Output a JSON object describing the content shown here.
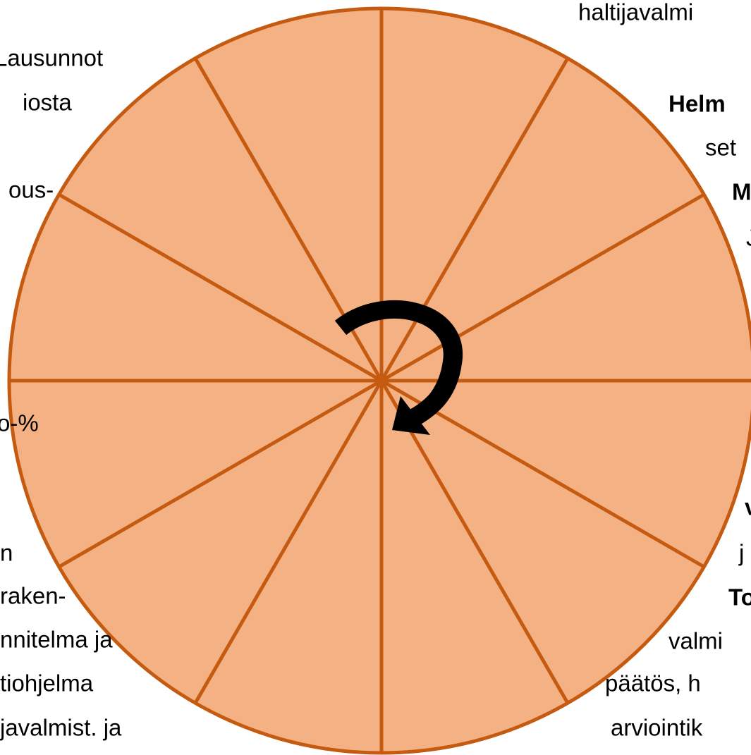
{
  "left_labels": [
    "Lausunnot",
    "iosta",
    "ous-",
    "o-%",
    "n",
    "raken-",
    "nnitelma ja",
    "tiohjelma",
    "javalmist. ja"
  ],
  "right_labels": [
    "haltijavalmi",
    "Helm",
    "set",
    "M",
    "J",
    "v",
    "j",
    "To",
    "valmi",
    "päätös, h",
    "arviointik"
  ]
}
